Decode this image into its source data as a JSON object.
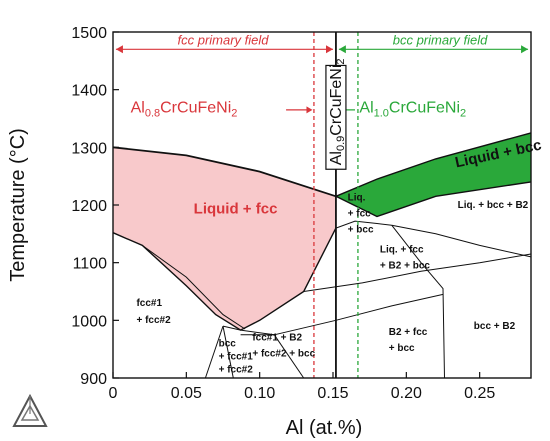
{
  "chart_data": {
    "type": "phase-diagram",
    "xlabel": "Al (at.%)",
    "ylabel": "Temperature (°C)",
    "xlim": [
      0,
      0.285
    ],
    "ylim": [
      900,
      1500
    ],
    "xticks": [
      "0",
      "0.05",
      "0.10",
      "0.15",
      "0.20",
      "0.25"
    ],
    "xtick_values": [
      0,
      0.05,
      0.1,
      0.15,
      0.2,
      0.25
    ],
    "yticks": [
      "900",
      "1000",
      "1100",
      "1200",
      "1300",
      "1400",
      "1500"
    ],
    "ytick_values": [
      900,
      1000,
      1100,
      1200,
      1300,
      1400,
      1500
    ],
    "colors": {
      "liquid_fcc": "#f8c9cb",
      "liquid_bcc": "#2aa83a",
      "fcc_text": "#d9363b",
      "bcc_text": "#2aa83a"
    },
    "annotations": {
      "fcc_field": "fcc primary field",
      "bcc_field": "bcc primary field",
      "al08_main": "Al",
      "al08_sub": "0.8",
      "al08_rest": "CrCuFeNi",
      "al08_ni_sub": "2",
      "al09_main": "Al",
      "al09_sub": "0.9",
      "al09_rest": "CrCuFeNi",
      "al09_ni_sub": "2",
      "al10_main": "Al",
      "al10_sub": "1.0",
      "al10_rest": "CrCuFeNi",
      "al10_ni_sub": "2"
    },
    "composition_lines": [
      {
        "name": "Al0.8CrCuFeNi2",
        "x": 0.137,
        "style": "dashed",
        "color": "#d9363b"
      },
      {
        "name": "Al0.9CrCuFeNi2",
        "x": 0.152,
        "style": "solid",
        "color": "#111111"
      },
      {
        "name": "Al1.0CrCuFeNi2",
        "x": 0.167,
        "style": "dashed",
        "color": "#2aa83a"
      }
    ],
    "regions": [
      {
        "label": "Liquid + fcc"
      },
      {
        "label": "Liquid + bcc"
      },
      {
        "label": "Liq. + bcc + B2"
      },
      {
        "label_lines": [
          "Liq.",
          "+ fcc",
          "+ bcc"
        ]
      },
      {
        "label_lines": [
          "Liq. + fcc",
          "+ B2 + bcc"
        ]
      },
      {
        "label_lines": [
          "fcc#1",
          "+ fcc#2"
        ]
      },
      {
        "label_lines": [
          "bcc",
          "+ fcc#1",
          "+ fcc#2"
        ]
      },
      {
        "label_lines": [
          "fcc#1 + B2",
          "+ fcc#2 + bcc"
        ]
      },
      {
        "label_lines": [
          "B2 + fcc",
          "+ bcc"
        ]
      },
      {
        "label": "bcc + B2"
      }
    ],
    "boundaries": {
      "liquidus_fcc": [
        [
          0,
          1300
        ],
        [
          0.05,
          1286
        ],
        [
          0.1,
          1258
        ],
        [
          0.152,
          1215
        ]
      ],
      "solidus_fcc": [
        [
          0,
          1152
        ],
        [
          0.02,
          1130
        ],
        [
          0.05,
          1060
        ],
        [
          0.07,
          1010
        ],
        [
          0.087,
          983
        ],
        [
          0.1,
          1000
        ],
        [
          0.13,
          1050
        ],
        [
          0.152,
          1160
        ]
      ],
      "liquidus_bcc": [
        [
          0.152,
          1215
        ],
        [
          0.18,
          1245
        ],
        [
          0.22,
          1280
        ],
        [
          0.285,
          1325
        ]
      ],
      "solidus_bcc": [
        [
          0.152,
          1215
        ],
        [
          0.18,
          1180
        ],
        [
          0.22,
          1215
        ],
        [
          0.285,
          1240
        ]
      ]
    }
  }
}
